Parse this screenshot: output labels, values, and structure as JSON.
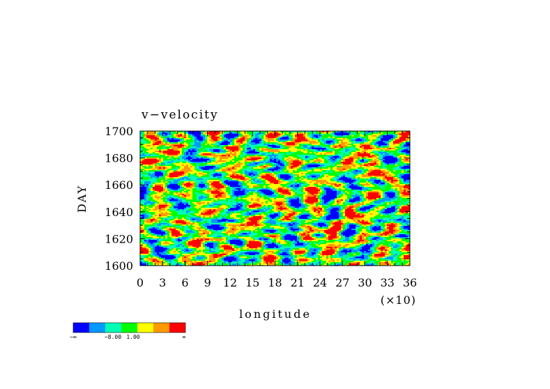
{
  "chart_data": {
    "type": "heatmap",
    "title": "v−velocity",
    "xlabel": "longitude",
    "ylabel": "DAY",
    "x_scale_note": "(×10)",
    "xlim": [
      0,
      36
    ],
    "ylim": [
      1600,
      1700
    ],
    "x_ticks": [
      "0",
      "3",
      "6",
      "9",
      "12",
      "15",
      "18",
      "21",
      "24",
      "27",
      "30",
      "33",
      "36"
    ],
    "y_ticks": [
      "1600",
      "1620",
      "1640",
      "1660",
      "1680",
      "1700"
    ],
    "colorbar": {
      "colors": [
        "#0000ff",
        "#0099ff",
        "#00ffb3",
        "#00ff00",
        "#ffff00",
        "#ff9900",
        "#ff0000"
      ],
      "labels": [
        "−∞",
        "−8.00",
        "1.00",
        "∞"
      ]
    }
  }
}
